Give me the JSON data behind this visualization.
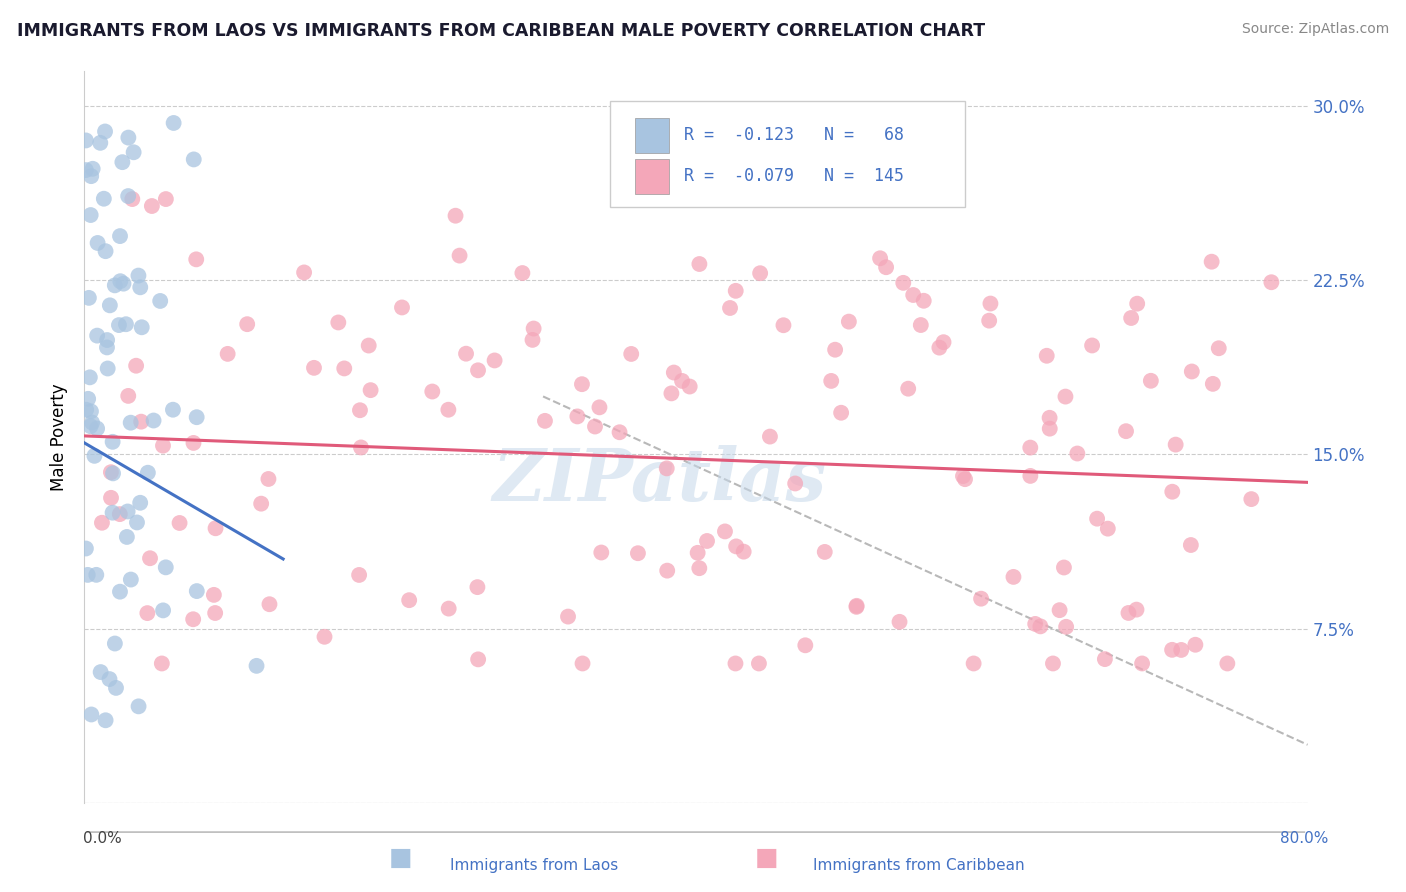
{
  "title": "IMMIGRANTS FROM LAOS VS IMMIGRANTS FROM CARIBBEAN MALE POVERTY CORRELATION CHART",
  "source": "Source: ZipAtlas.com",
  "ylabel": "Male Poverty",
  "y_ticks": [
    0.0,
    0.075,
    0.15,
    0.225,
    0.3
  ],
  "y_tick_labels": [
    "",
    "7.5%",
    "15.0%",
    "22.5%",
    "30.0%"
  ],
  "xlim": [
    0.0,
    0.8
  ],
  "ylim": [
    0.0,
    0.315
  ],
  "legend_label1": "Immigrants from Laos",
  "legend_label2": "Immigrants from Caribbean",
  "R1": -0.123,
  "N1": 68,
  "R2": -0.079,
  "N2": 145,
  "color_laos": "#a8c4e0",
  "color_caribbean": "#f4a7b9",
  "color_laos_line": "#4472c4",
  "color_caribbean_line": "#e05a7a",
  "color_dashed": "#b8b8b8",
  "watermark": "ZIPatlas",
  "laos_seed": 12345,
  "carib_seed": 54321,
  "laos_line_x0": 0.0,
  "laos_line_x1": 0.13,
  "laos_line_y0": 0.155,
  "laos_line_y1": 0.105,
  "carib_line_x0": 0.0,
  "carib_line_x1": 0.8,
  "carib_line_y0": 0.158,
  "carib_line_y1": 0.138,
  "dash_line_x0": 0.3,
  "dash_line_x1": 0.8,
  "dash_line_y0": 0.175,
  "dash_line_y1": 0.025
}
